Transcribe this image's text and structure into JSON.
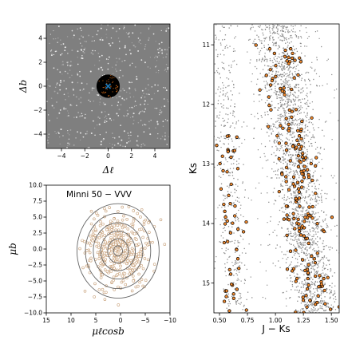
{
  "chart_data": [
    {
      "panel": "top-left",
      "type": "scatter",
      "xlabel": "Δℓ",
      "ylabel": "Δb",
      "xlim": [
        -5.3,
        5.3
      ],
      "ylim": [
        -5.2,
        5.2
      ],
      "xticks": [
        -4,
        -2,
        0,
        2,
        4
      ],
      "yticks": [
        -4,
        -2,
        0,
        2,
        4
      ],
      "background_color": "#7f7f7f",
      "circle": {
        "center": [
          0,
          0
        ],
        "radius": 1.0,
        "fill": "#000000"
      },
      "center_marker": {
        "x": 0.0,
        "y": 0.0,
        "symbol": "x",
        "color": "#1f77b4"
      },
      "member_color": "#e8731a"
    },
    {
      "panel": "bottom-left",
      "type": "scatter",
      "title": "Minni 50 − VVV",
      "xlabel": "μℓcosb",
      "ylabel": "μb",
      "xlim": [
        15,
        -10
      ],
      "ylim": [
        -10,
        10
      ],
      "xticks": [
        15,
        10,
        5,
        0,
        -5,
        -10
      ],
      "yticks": [
        -10.0,
        -7.5,
        -5.0,
        -2.5,
        0.0,
        2.5,
        5.0,
        7.5,
        10.0
      ],
      "contour_center": [
        0.5,
        -0.3
      ],
      "contour_radii": [
        [
          8.3,
          7.4
        ],
        [
          6.6,
          5.9
        ],
        [
          5.0,
          4.4
        ],
        [
          3.5,
          3.1
        ],
        [
          2.1,
          1.9
        ],
        [
          0.9,
          0.8
        ]
      ],
      "point_edge_color": "#c8a079",
      "contour_color": "#666666"
    },
    {
      "panel": "right",
      "type": "scatter",
      "xlabel": "J − Ks",
      "ylabel": "Ks",
      "xlim": [
        0.45,
        1.57
      ],
      "ylim": [
        15.5,
        10.65
      ],
      "xticks": [
        0.5,
        0.75,
        1.0,
        1.25,
        1.5
      ],
      "xtick_labels": [
        "0.50",
        "0.75",
        "1.00",
        "1.25",
        "1.50"
      ],
      "yticks": [
        11,
        12,
        13,
        14,
        15
      ],
      "field_color": "#8c8c8c",
      "member_fill": "#f28a2e",
      "member_edge": "#000000"
    }
  ]
}
